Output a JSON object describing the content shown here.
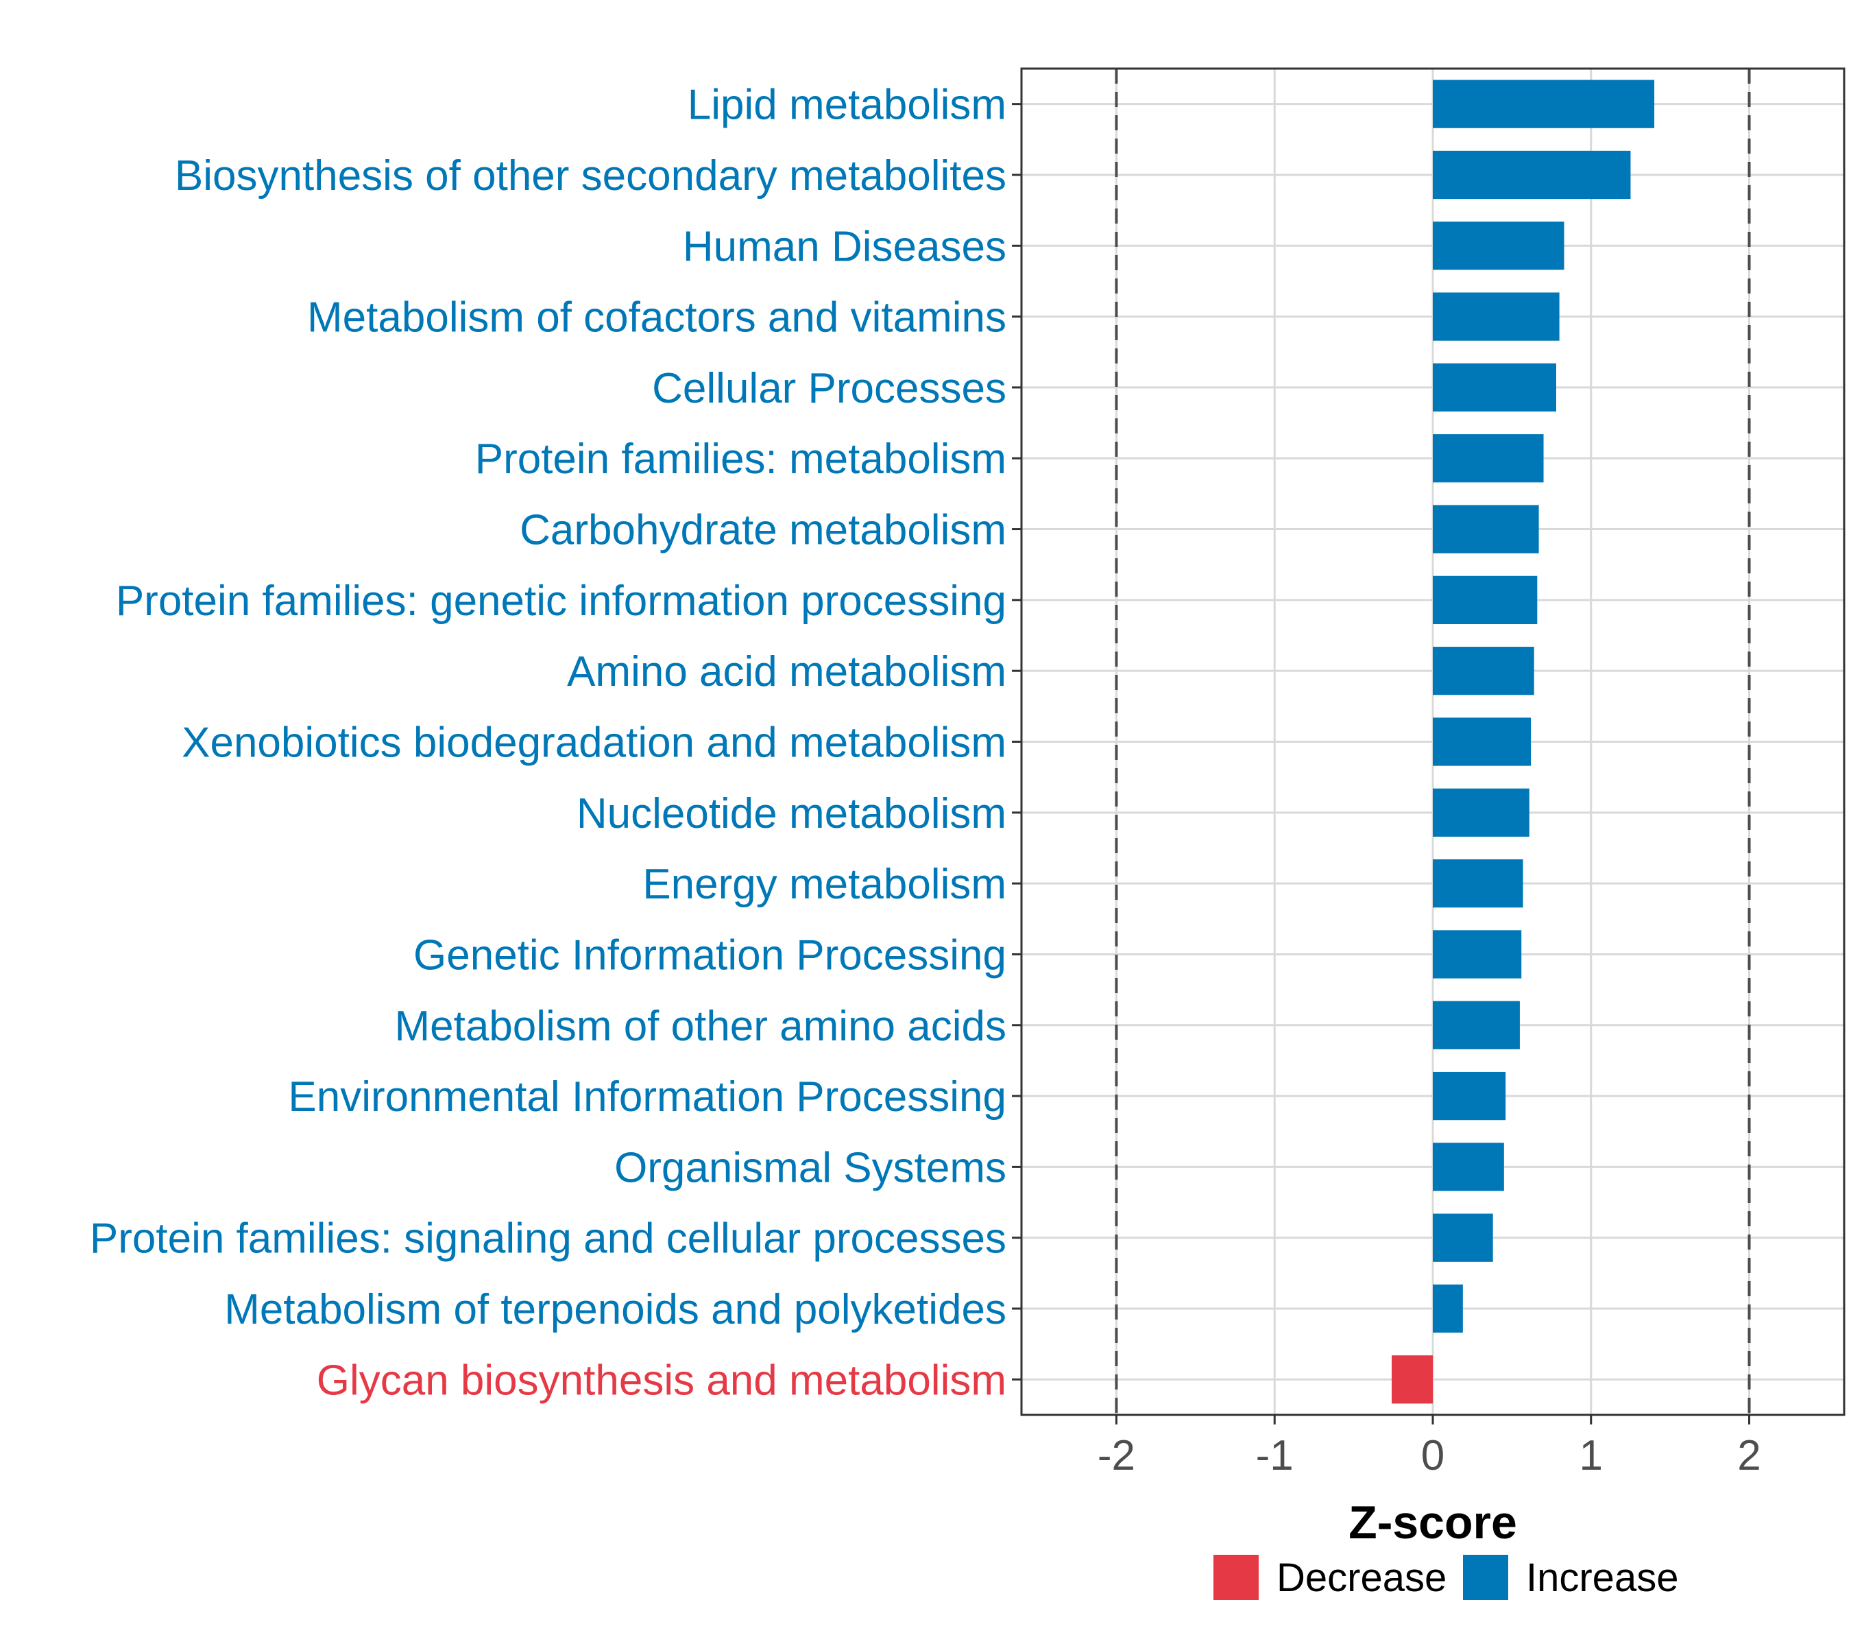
{
  "chart_data": {
    "type": "bar",
    "orientation": "horizontal",
    "title": "",
    "xlabel": "Z-score",
    "ylabel": "",
    "xlim": [
      -2.6,
      2.6
    ],
    "xticks": [
      -2,
      -1,
      0,
      1,
      2
    ],
    "xtick_labels": [
      "-2",
      "-1",
      "0",
      "1",
      "2"
    ],
    "reference_lines": [
      -2,
      2
    ],
    "grid": true,
    "categories": [
      "Lipid metabolism",
      "Biosynthesis of other secondary metabolites",
      "Human Diseases",
      "Metabolism of cofactors and vitamins",
      "Cellular Processes",
      "Protein families: metabolism",
      "Carbohydrate metabolism",
      "Protein families: genetic information processing",
      "Amino acid metabolism",
      "Xenobiotics biodegradation and metabolism",
      "Nucleotide metabolism",
      "Energy metabolism",
      "Genetic Information Processing",
      "Metabolism of other amino acids",
      "Environmental Information Processing",
      "Organismal Systems",
      "Protein families: signaling and cellular processes",
      "Metabolism of terpenoids and polyketides",
      "Glycan biosynthesis and metabolism"
    ],
    "values": [
      1.4,
      1.25,
      0.83,
      0.8,
      0.78,
      0.7,
      0.67,
      0.66,
      0.64,
      0.62,
      0.61,
      0.57,
      0.56,
      0.55,
      0.46,
      0.45,
      0.38,
      0.19,
      -0.26
    ],
    "groups": [
      "Increase",
      "Increase",
      "Increase",
      "Increase",
      "Increase",
      "Increase",
      "Increase",
      "Increase",
      "Increase",
      "Increase",
      "Increase",
      "Increase",
      "Increase",
      "Increase",
      "Increase",
      "Increase",
      "Increase",
      "Increase",
      "Decrease"
    ],
    "legend": {
      "position": "bottom",
      "entries": [
        {
          "label": "Decrease",
          "color": "#e63946"
        },
        {
          "label": "Increase",
          "color": "#0077b6"
        }
      ]
    },
    "colors": {
      "Increase": "#0077b6",
      "Decrease": "#e63946",
      "grid": "#d9d9d9",
      "reference_line": "#4d4d4d",
      "panel_border": "#333333"
    }
  }
}
